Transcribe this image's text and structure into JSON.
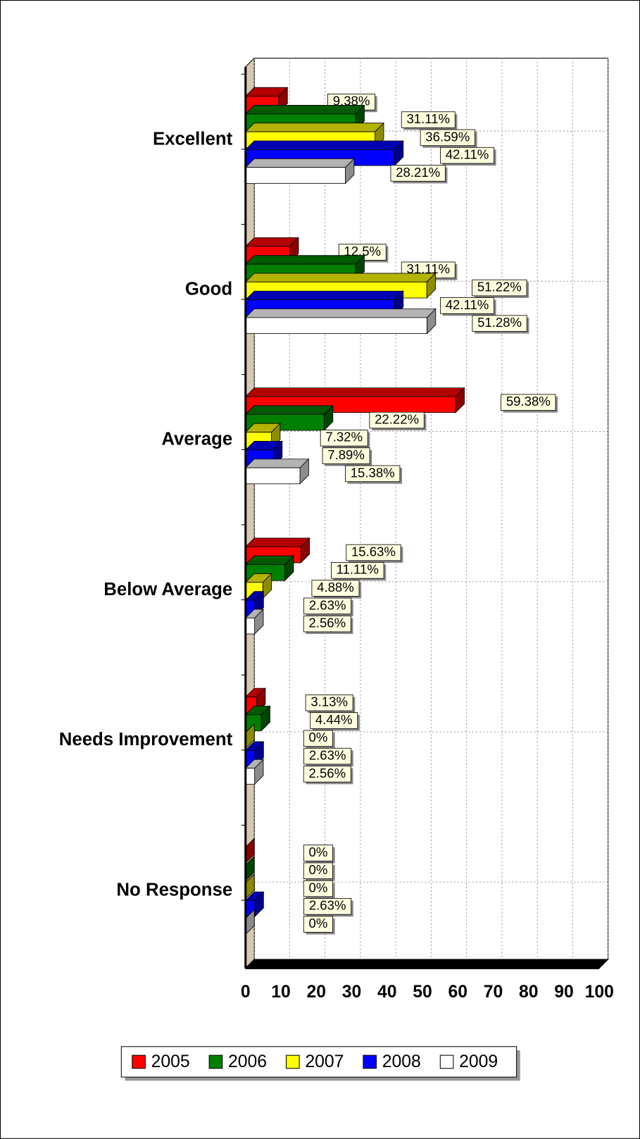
{
  "chart_data": {
    "type": "bar",
    "orientation": "horizontal",
    "categories": [
      "Excellent",
      "Good",
      "Average",
      "Below Average",
      "Needs Improvement",
      "No Response"
    ],
    "series": [
      {
        "name": "2005",
        "color": "#ff0000",
        "values": [
          9.38,
          12.5,
          59.38,
          15.63,
          3.13,
          0
        ],
        "value_labels": [
          "9.38%",
          "12.5%",
          "59.38%",
          "15.63%",
          "3.13%",
          "0%"
        ]
      },
      {
        "name": "2006",
        "color": "#008000",
        "values": [
          31.11,
          31.11,
          22.22,
          11.11,
          4.44,
          0
        ],
        "value_labels": [
          "31.11%",
          "31.11%",
          "22.22%",
          "11.11%",
          "4.44%",
          "0%"
        ]
      },
      {
        "name": "2007",
        "color": "#ffff00",
        "values": [
          36.59,
          51.22,
          7.32,
          4.88,
          0,
          0
        ],
        "value_labels": [
          "36.59%",
          "51.22%",
          "7.32%",
          "4.88%",
          "0%",
          "0%"
        ]
      },
      {
        "name": "2008",
        "color": "#0000ff",
        "values": [
          42.11,
          42.11,
          7.89,
          2.63,
          2.63,
          2.63
        ],
        "value_labels": [
          "42.11%",
          "42.11%",
          "7.89%",
          "2.63%",
          "2.63%",
          "2.63%"
        ]
      },
      {
        "name": "2009",
        "color": "#ffffff",
        "values": [
          28.21,
          51.28,
          15.38,
          2.56,
          2.56,
          0
        ],
        "value_labels": [
          "28.21%",
          "51.28%",
          "15.38%",
          "2.56%",
          "2.56%",
          "0%"
        ]
      }
    ],
    "xlim": [
      0,
      100
    ],
    "xticks": [
      0,
      10,
      20,
      30,
      40,
      50,
      60,
      70,
      80,
      90,
      100
    ],
    "grid": true,
    "legend": "bottom"
  }
}
